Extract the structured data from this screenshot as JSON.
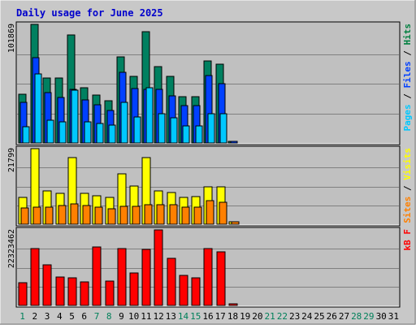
{
  "chart_data": {
    "type": "bar",
    "title": "Daily usage for June 2025",
    "categories": [
      "1",
      "2",
      "3",
      "4",
      "5",
      "6",
      "7",
      "8",
      "9",
      "10",
      "11",
      "12",
      "13",
      "14",
      "15",
      "16",
      "17",
      "18",
      "19",
      "20",
      "21",
      "22",
      "23",
      "24",
      "25",
      "26",
      "27",
      "28",
      "29",
      "30",
      "31"
    ],
    "weekend_days": [
      1,
      7,
      8,
      14,
      15,
      21,
      22,
      28,
      29
    ],
    "panels": [
      {
        "id": "hits",
        "max_label": "101869",
        "ymax": 101869,
        "ylabel_parts": [
          {
            "text": "Pages",
            "color": "#00c8ff"
          },
          {
            "text": " / ",
            "color": "#000000"
          },
          {
            "text": "Files",
            "color": "#0040ff"
          },
          {
            "text": " / ",
            "color": "#000000"
          },
          {
            "text": "Hits",
            "color": "#008040"
          }
        ],
        "series": [
          {
            "name": "Hits",
            "color": "#008060",
            "values": [
              42100,
              101869,
              55600,
              55600,
              93100,
              47500,
              41200,
              36200,
              74100,
              56900,
              95700,
              65900,
              56900,
              39700,
              39700,
              70300,
              67900,
              1400,
              0,
              0,
              0,
              0,
              0,
              0,
              0,
              0,
              0,
              0,
              0,
              0,
              0
            ]
          },
          {
            "name": "Files",
            "color": "#0040ff",
            "values": [
              34700,
              73200,
              43200,
              38900,
              45800,
              36800,
              32800,
              27900,
              60600,
              46600,
              45800,
              45800,
              40300,
              32400,
              32400,
              57800,
              51000,
              1100,
              0,
              0,
              0,
              0,
              0,
              0,
              0,
              0,
              0,
              0,
              0,
              0,
              0
            ]
          },
          {
            "name": "Pages",
            "color": "#00c8ff",
            "values": [
              13800,
              59000,
              19600,
              18200,
              45100,
              18200,
              17000,
              15600,
              34700,
              22100,
              47100,
              25300,
              21400,
              14700,
              14700,
              25300,
              24900,
              0,
              0,
              0,
              0,
              0,
              0,
              0,
              0,
              0,
              0,
              0,
              0,
              0,
              0
            ]
          }
        ]
      },
      {
        "id": "visits",
        "max_label": "21799",
        "ymax": 21799,
        "ylabel_parts": [
          {
            "text": "Sites",
            "color": "#ff8000"
          },
          {
            "text": " / ",
            "color": "#000000"
          },
          {
            "text": "Visits",
            "color": "#ffff00"
          }
        ],
        "series": [
          {
            "name": "Visits",
            "color": "#ffff00",
            "values": [
              7650,
              21799,
              9660,
              8920,
              19330,
              8920,
              8190,
              7830,
              14500,
              11000,
              19330,
              9560,
              9190,
              7650,
              7920,
              10760,
              10760,
              700,
              0,
              0,
              0,
              0,
              0,
              0,
              0,
              0,
              0,
              0,
              0,
              0,
              0
            ]
          },
          {
            "name": "Sites",
            "color": "#ff8000",
            "values": [
              4660,
              4930,
              4930,
              5470,
              5830,
              5470,
              4930,
              4570,
              5200,
              5200,
              5650,
              5650,
              5740,
              4840,
              4930,
              6750,
              6370,
              600,
              0,
              0,
              0,
              0,
              0,
              0,
              0,
              0,
              0,
              0,
              0,
              0,
              0
            ]
          }
        ]
      },
      {
        "id": "kbytes",
        "max_label": "22323462",
        "ymax": 22323462,
        "ylabel_parts": [
          {
            "text": "kB F",
            "color": "#ff0000"
          }
        ],
        "series": [
          {
            "name": "kB F",
            "color": "#ff0000",
            "values": [
              6800000,
              16800000,
              12000000,
              8400000,
              8200000,
              7000000,
              17200000,
              7200000,
              16800000,
              9600000,
              16500000,
              22323462,
              14000000,
              9000000,
              8200000,
              16800000,
              15800000,
              300000,
              0,
              0,
              0,
              0,
              0,
              0,
              0,
              0,
              0,
              0,
              0,
              0,
              0
            ]
          }
        ]
      }
    ]
  }
}
